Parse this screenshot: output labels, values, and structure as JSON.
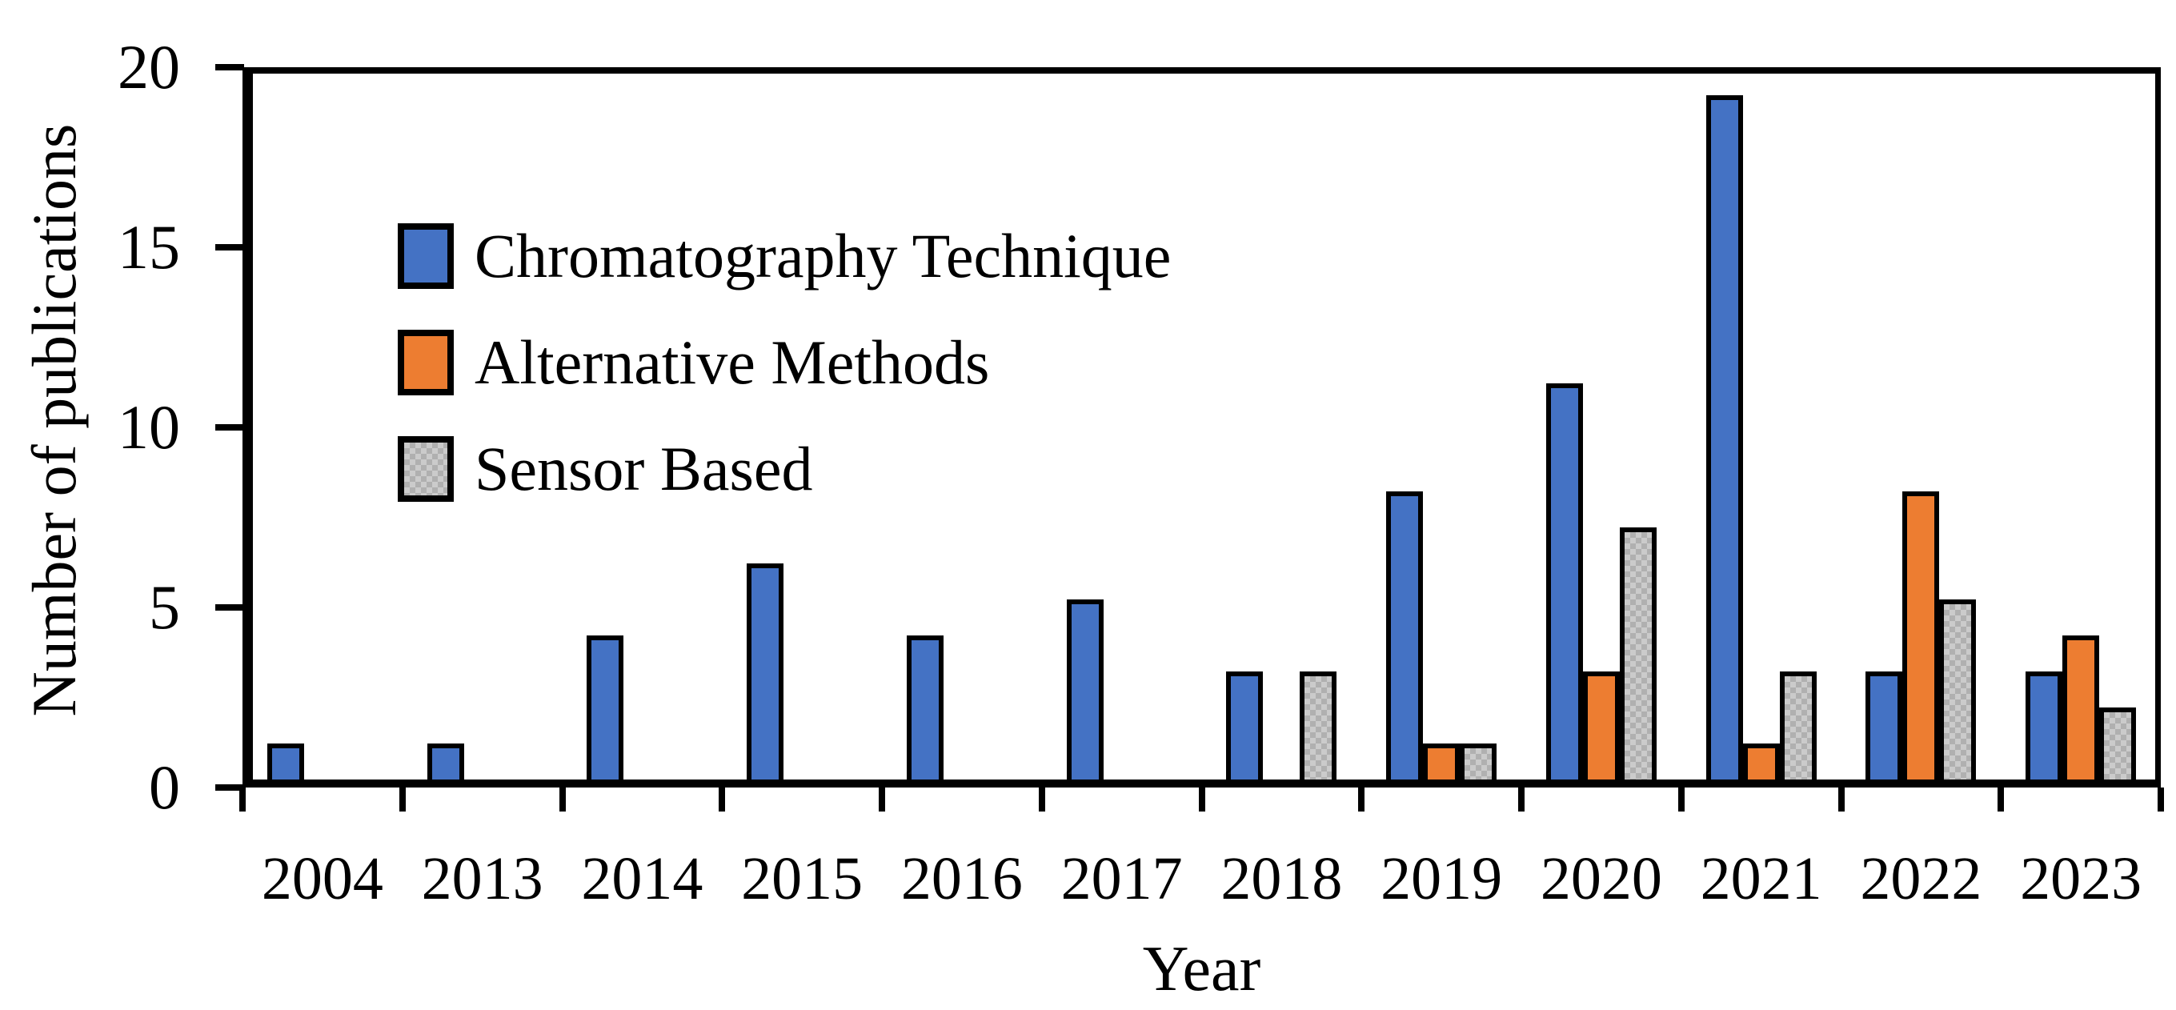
{
  "chart_data": {
    "type": "bar",
    "title": "",
    "xlabel": "Year",
    "ylabel": "Number of publications",
    "categories": [
      "2004",
      "2013",
      "2014",
      "2015",
      "2016",
      "2017",
      "2018",
      "2019",
      "2020",
      "2021",
      "2022",
      "2023"
    ],
    "series": [
      {
        "name": "Chromatography Technique",
        "color": "#4472C4",
        "pattern": "solid",
        "values": [
          1,
          1,
          4,
          6,
          4,
          5,
          3,
          8,
          11,
          19,
          3,
          3
        ]
      },
      {
        "name": "Alternative Methods",
        "color": "#ED7D31",
        "pattern": "solid",
        "values": [
          0,
          0,
          0,
          0,
          0,
          0,
          0,
          1,
          3,
          1,
          8,
          4
        ]
      },
      {
        "name": "Sensor Based",
        "color": "#C7C7C7",
        "pattern": "checker",
        "values": [
          0,
          0,
          0,
          0,
          0,
          0,
          3,
          1,
          7,
          3,
          5,
          2
        ]
      }
    ],
    "ylim": [
      0,
      20
    ],
    "yticks": [
      0,
      5,
      10,
      15,
      20
    ],
    "grid": "off",
    "legend_position": "upper-left-inside",
    "outline_color": "#000000",
    "background": "#FFFFFF"
  }
}
